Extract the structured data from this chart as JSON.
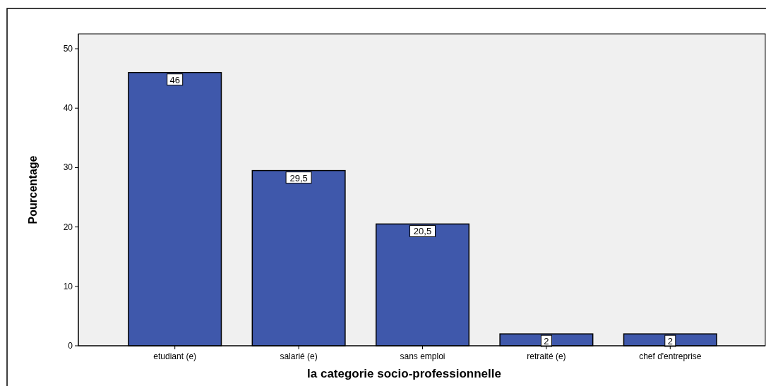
{
  "chart_data": {
    "type": "bar",
    "xlabel": "la categorie socio-professionnelle",
    "ylabel": "Pourcentage",
    "categories": [
      "etudiant (e)",
      "salarié (e)",
      "sans emploi",
      "retraité (e)",
      "chef d'entreprise"
    ],
    "values": [
      46,
      29.5,
      20.5,
      2,
      2
    ],
    "value_labels": [
      "46",
      "29,5",
      "20,5",
      "2",
      "2"
    ],
    "color": "#3f58ab",
    "ylim": [
      0,
      52.5
    ],
    "yticks": [
      0,
      10,
      20,
      30,
      40,
      50
    ],
    "grid": false
  }
}
